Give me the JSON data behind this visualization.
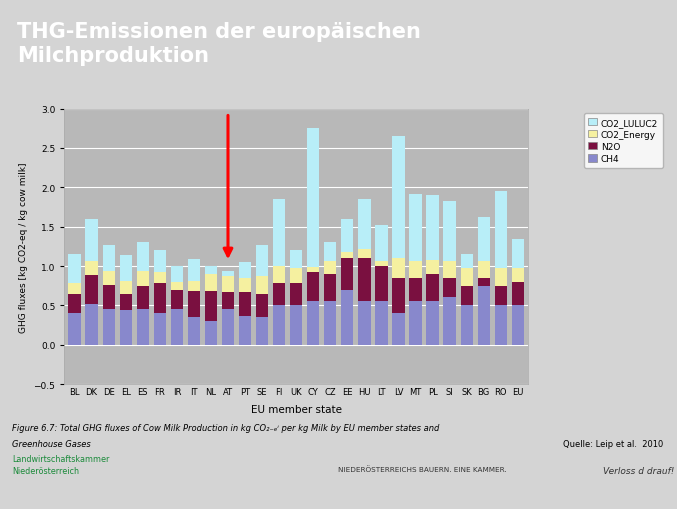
{
  "title_header": "THG-Emissionen der europäischen\nMilchproduktion",
  "header_bg": "#1a8a3a",
  "header_text_color": "#ffffff",
  "outer_bg": "#d4d4d4",
  "chart_frame_bg": "#f0f0f0",
  "plot_bg": "#b8b8b8",
  "countries": [
    "BL",
    "DK",
    "DE",
    "EL",
    "ES",
    "FR",
    "IR",
    "IT",
    "NL",
    "AT",
    "PT",
    "SE",
    "FI",
    "UK",
    "CY",
    "CZ",
    "EE",
    "HU",
    "LT",
    "LV",
    "MT",
    "PL",
    "SI",
    "SK",
    "BG",
    "RO",
    "EU"
  ],
  "CH4": [
    0.4,
    0.52,
    0.46,
    0.44,
    0.46,
    0.4,
    0.45,
    0.35,
    0.3,
    0.45,
    0.37,
    0.35,
    0.5,
    0.5,
    0.55,
    0.55,
    0.7,
    0.55,
    0.55,
    0.4,
    0.55,
    0.55,
    0.6,
    0.5,
    0.75,
    0.5,
    0.5
  ],
  "N2O": [
    0.25,
    0.37,
    0.3,
    0.2,
    0.28,
    0.38,
    0.25,
    0.33,
    0.38,
    0.22,
    0.3,
    0.3,
    0.28,
    0.28,
    0.38,
    0.35,
    0.4,
    0.55,
    0.45,
    0.45,
    0.3,
    0.35,
    0.25,
    0.25,
    0.1,
    0.25,
    0.3
  ],
  "CO2_Energy": [
    0.14,
    0.17,
    0.18,
    0.17,
    0.2,
    0.14,
    0.1,
    0.13,
    0.22,
    0.2,
    0.18,
    0.22,
    0.22,
    0.2,
    0.06,
    0.17,
    0.08,
    0.12,
    0.07,
    0.25,
    0.22,
    0.18,
    0.22,
    0.22,
    0.22,
    0.23,
    0.17
  ],
  "CO2_LULUC2": [
    0.36,
    0.54,
    0.33,
    0.33,
    0.36,
    0.28,
    0.2,
    0.28,
    0.1,
    0.07,
    0.2,
    0.4,
    0.85,
    0.22,
    1.77,
    0.23,
    0.42,
    0.63,
    0.45,
    1.55,
    0.85,
    0.82,
    0.75,
    0.18,
    0.55,
    0.97,
    0.37
  ],
  "colors": {
    "CH4": "#8888cc",
    "N2O": "#7a1040",
    "CO2_Energy": "#f5f0a0",
    "CO2_LULUC2": "#b8eef8"
  },
  "ylabel": "GHG fluxes [kg CO2-eq / kg cow milk]",
  "xlabel": "EU member state",
  "ylim": [
    -0.5,
    3.0
  ],
  "yticks": [
    -0.5,
    0.0,
    0.5,
    1.0,
    1.5,
    2.0,
    2.5,
    3.0
  ],
  "arrow_country_idx": 9,
  "figure_caption_line1": "Figure 6.7: Total GHG fluxes of Cow Milk Production in kg CO",
  "figure_caption_line2": "per kg Milk by EU member states and",
  "figure_caption_line3": "Greenhouse Gases",
  "source_text": "Quelle: Leip et al.  2010"
}
